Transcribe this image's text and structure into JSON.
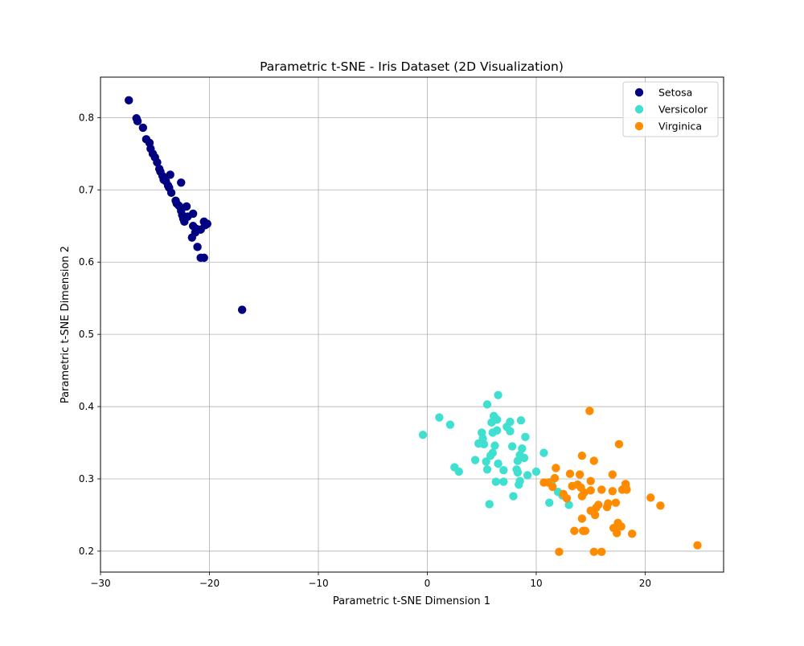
{
  "chart_data": {
    "type": "scatter",
    "title": "Parametric t-SNE - Iris Dataset (2D Visualization)",
    "xlabel": "Parametric t-SNE Dimension 1",
    "ylabel": "Parametric t-SNE Dimension 2",
    "xlim": [
      -30,
      27.2
    ],
    "ylim": [
      0.171,
      0.856
    ],
    "xticks": [
      -30,
      -20,
      -10,
      0,
      10,
      20
    ],
    "yticks": [
      0.2,
      0.3,
      0.4,
      0.5,
      0.6,
      0.7,
      0.8
    ],
    "xtick_labels": [
      "−30",
      "−20",
      "−10",
      "0",
      "10",
      "20"
    ],
    "ytick_labels": [
      "0.2",
      "0.3",
      "0.4",
      "0.5",
      "0.6",
      "0.7",
      "0.8"
    ],
    "grid": true,
    "legend_position": "top-right",
    "series": [
      {
        "name": "Setosa",
        "color": "#000080",
        "points": [
          [
            -27.4,
            0.824
          ],
          [
            -26.7,
            0.799
          ],
          [
            -26.6,
            0.795
          ],
          [
            -26.1,
            0.786
          ],
          [
            -25.8,
            0.77
          ],
          [
            -25.5,
            0.765
          ],
          [
            -25.4,
            0.757
          ],
          [
            -25.2,
            0.75
          ],
          [
            -25.0,
            0.745
          ],
          [
            -24.8,
            0.738
          ],
          [
            -24.6,
            0.729
          ],
          [
            -24.5,
            0.725
          ],
          [
            -24.3,
            0.719
          ],
          [
            -24.2,
            0.714
          ],
          [
            -24.0,
            0.712
          ],
          [
            -23.8,
            0.706
          ],
          [
            -23.7,
            0.703
          ],
          [
            -23.6,
            0.721
          ],
          [
            -23.5,
            0.696
          ],
          [
            -23.1,
            0.685
          ],
          [
            -23.0,
            0.681
          ],
          [
            -22.8,
            0.678
          ],
          [
            -22.6,
            0.71
          ],
          [
            -22.6,
            0.671
          ],
          [
            -22.5,
            0.665
          ],
          [
            -22.4,
            0.66
          ],
          [
            -22.3,
            0.656
          ],
          [
            -22.1,
            0.677
          ],
          [
            -22.0,
            0.663
          ],
          [
            -21.6,
            0.634
          ],
          [
            -21.5,
            0.667
          ],
          [
            -21.5,
            0.65
          ],
          [
            -21.3,
            0.641
          ],
          [
            -21.2,
            0.646
          ],
          [
            -21.1,
            0.621
          ],
          [
            -20.8,
            0.645
          ],
          [
            -20.8,
            0.606
          ],
          [
            -20.5,
            0.656
          ],
          [
            -20.5,
            0.606
          ],
          [
            -20.4,
            0.651
          ],
          [
            -20.2,
            0.653
          ],
          [
            -17.0,
            0.534
          ]
        ]
      },
      {
        "name": "Versicolor",
        "color": "#40e0d0",
        "points": [
          [
            -0.4,
            0.361
          ],
          [
            1.1,
            0.385
          ],
          [
            2.1,
            0.375
          ],
          [
            2.5,
            0.316
          ],
          [
            2.9,
            0.31
          ],
          [
            4.4,
            0.326
          ],
          [
            4.7,
            0.349
          ],
          [
            5.0,
            0.364
          ],
          [
            5.1,
            0.356
          ],
          [
            5.2,
            0.348
          ],
          [
            5.4,
            0.324
          ],
          [
            5.5,
            0.313
          ],
          [
            5.5,
            0.403
          ],
          [
            5.7,
            0.265
          ],
          [
            5.8,
            0.332
          ],
          [
            5.9,
            0.378
          ],
          [
            6.0,
            0.336
          ],
          [
            6.0,
            0.364
          ],
          [
            6.1,
            0.387
          ],
          [
            6.2,
            0.346
          ],
          [
            6.3,
            0.296
          ],
          [
            6.4,
            0.367
          ],
          [
            6.4,
            0.382
          ],
          [
            6.5,
            0.416
          ],
          [
            6.5,
            0.321
          ],
          [
            7.0,
            0.296
          ],
          [
            7.0,
            0.312
          ],
          [
            7.3,
            0.372
          ],
          [
            7.6,
            0.366
          ],
          [
            7.6,
            0.379
          ],
          [
            7.8,
            0.345
          ],
          [
            7.9,
            0.276
          ],
          [
            8.2,
            0.313
          ],
          [
            8.3,
            0.325
          ],
          [
            8.3,
            0.309
          ],
          [
            8.4,
            0.292
          ],
          [
            8.5,
            0.297
          ],
          [
            8.5,
            0.333
          ],
          [
            8.6,
            0.381
          ],
          [
            8.7,
            0.342
          ],
          [
            8.9,
            0.329
          ],
          [
            9.0,
            0.358
          ],
          [
            9.2,
            0.305
          ],
          [
            10.0,
            0.31
          ],
          [
            10.7,
            0.336
          ],
          [
            11.2,
            0.267
          ],
          [
            11.4,
            0.296
          ],
          [
            12.0,
            0.282
          ],
          [
            12.4,
            0.277
          ],
          [
            13.0,
            0.264
          ]
        ]
      },
      {
        "name": "Virginica",
        "color": "#ff8c00",
        "points": [
          [
            10.7,
            0.295
          ],
          [
            11.1,
            0.295
          ],
          [
            11.5,
            0.289
          ],
          [
            11.7,
            0.301
          ],
          [
            11.8,
            0.315
          ],
          [
            12.1,
            0.199
          ],
          [
            12.5,
            0.279
          ],
          [
            12.8,
            0.273
          ],
          [
            13.1,
            0.307
          ],
          [
            13.3,
            0.29
          ],
          [
            13.5,
            0.228
          ],
          [
            13.8,
            0.292
          ],
          [
            14.0,
            0.306
          ],
          [
            14.1,
            0.288
          ],
          [
            14.2,
            0.245
          ],
          [
            14.2,
            0.332
          ],
          [
            14.2,
            0.276
          ],
          [
            14.3,
            0.228
          ],
          [
            14.4,
            0.281
          ],
          [
            14.5,
            0.228
          ],
          [
            14.9,
            0.394
          ],
          [
            15.0,
            0.297
          ],
          [
            15.0,
            0.284
          ],
          [
            15.0,
            0.256
          ],
          [
            15.3,
            0.325
          ],
          [
            15.3,
            0.199
          ],
          [
            15.4,
            0.25
          ],
          [
            15.5,
            0.26
          ],
          [
            15.7,
            0.264
          ],
          [
            16.0,
            0.285
          ],
          [
            16.0,
            0.199
          ],
          [
            16.5,
            0.261
          ],
          [
            16.6,
            0.266
          ],
          [
            17.0,
            0.306
          ],
          [
            17.0,
            0.283
          ],
          [
            17.1,
            0.232
          ],
          [
            17.3,
            0.267
          ],
          [
            17.4,
            0.225
          ],
          [
            17.5,
            0.239
          ],
          [
            17.6,
            0.348
          ],
          [
            17.8,
            0.234
          ],
          [
            17.9,
            0.285
          ],
          [
            18.2,
            0.293
          ],
          [
            18.2,
            0.289
          ],
          [
            18.3,
            0.285
          ],
          [
            18.8,
            0.224
          ],
          [
            20.5,
            0.274
          ],
          [
            21.4,
            0.263
          ],
          [
            24.8,
            0.208
          ]
        ]
      }
    ]
  }
}
